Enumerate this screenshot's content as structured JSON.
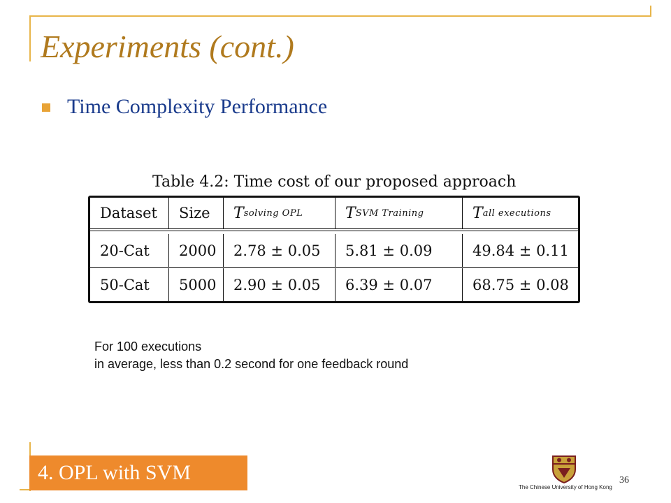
{
  "slide": {
    "title": "Experiments (cont.)",
    "bullet": "Time Complexity Performance",
    "page_number": "36"
  },
  "table": {
    "caption": "Table 4.2:  Time cost of our proposed approach",
    "headers": {
      "dataset": "Dataset",
      "size": "Size",
      "t_symbol": "T",
      "solving_sub": "solving OPL",
      "svm_sub": "SVM Training",
      "all_sub": "all executions"
    },
    "rows": [
      {
        "dataset": "20-Cat",
        "size": "2000",
        "solving": "2.78 ± 0.05",
        "svm": "5.81 ± 0.09",
        "all": "49.84 ± 0.11"
      },
      {
        "dataset": "50-Cat",
        "size": "5000",
        "solving": "2.90 ± 0.05",
        "svm": "6.39 ± 0.07",
        "all": "68.75 ± 0.08"
      }
    ]
  },
  "note": {
    "line1": "For 100 executions",
    "line2": "in average, less than 0.2 second for one feedback round"
  },
  "footer": {
    "section_label": "4. OPL with SVM",
    "logo_text": "The Chinese University of Hong Kong",
    "logo_icon": "university-crest-icon"
  },
  "colors": {
    "title": "#b07a1e",
    "bullet_text": "#1a3b8c",
    "bullet_marker": "#e8a336",
    "frame": "#e8b54a",
    "section_badge": "#ee8a2c"
  }
}
